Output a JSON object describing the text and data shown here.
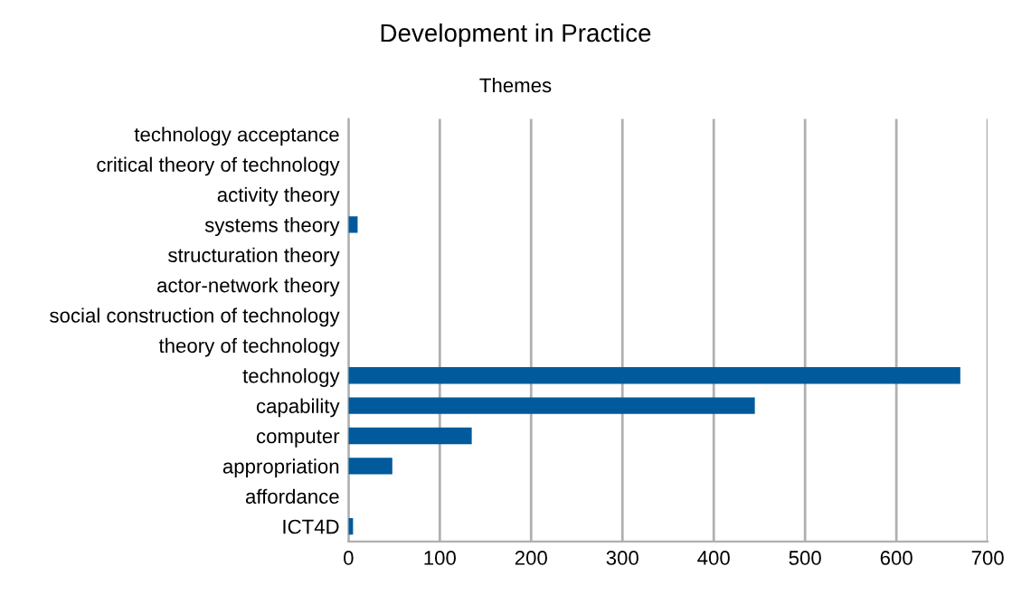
{
  "chart_data": {
    "type": "bar",
    "orientation": "horizontal",
    "title": "Development in Practice",
    "subtitle": "Themes",
    "categories": [
      "technology acceptance",
      "critical theory of technology",
      "activity theory",
      "systems theory",
      "structuration theory",
      "actor-network theory",
      "social construction of technology",
      "theory of technology",
      "technology",
      "capability",
      "computer",
      "appropriation",
      "affordance",
      "ICT4D"
    ],
    "values": [
      0,
      0,
      0,
      10,
      0,
      0,
      0,
      0,
      670,
      445,
      135,
      48,
      0,
      5
    ],
    "color": "#005a9c",
    "xlim": [
      0,
      700
    ],
    "xticks": [
      0,
      100,
      200,
      300,
      400,
      500,
      600,
      700
    ],
    "grid": "x",
    "legend": false
  }
}
